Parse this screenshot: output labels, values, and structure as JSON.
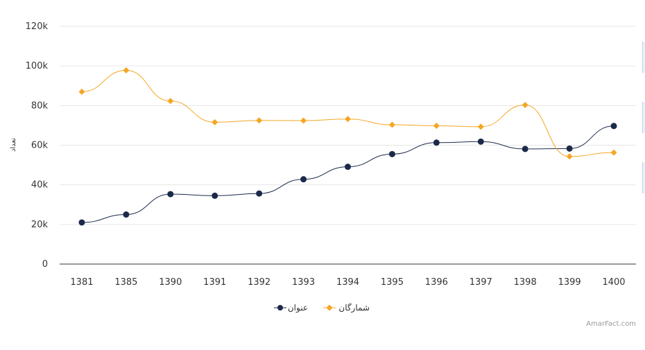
{
  "chart_data": {
    "type": "line",
    "categories": [
      "1381",
      "1385",
      "1390",
      "1391",
      "1392",
      "1393",
      "1394",
      "1395",
      "1396",
      "1397",
      "1398",
      "1399",
      "1400"
    ],
    "series": [
      {
        "name": "عنوان",
        "color": "#1b2a4a",
        "marker": "circle",
        "values": [
          21000,
          25000,
          35300,
          34500,
          35600,
          42800,
          49100,
          55500,
          61300,
          61800,
          58100,
          58300,
          69700
        ]
      },
      {
        "name": "شمارگان",
        "color": "#f5a623",
        "marker": "diamond",
        "values": [
          87000,
          97800,
          82300,
          71600,
          72500,
          72400,
          73200,
          70300,
          69800,
          69300,
          80300,
          54300,
          56300
        ]
      }
    ],
    "ylabel": "تعداد",
    "xlabel": "",
    "ylim": [
      0,
      120000
    ],
    "yticks": [
      "0",
      "20k",
      "40k",
      "60k",
      "80k",
      "100k",
      "120k"
    ],
    "grid": true,
    "legend": "bottom-center"
  },
  "credit": "AmarFact.com"
}
